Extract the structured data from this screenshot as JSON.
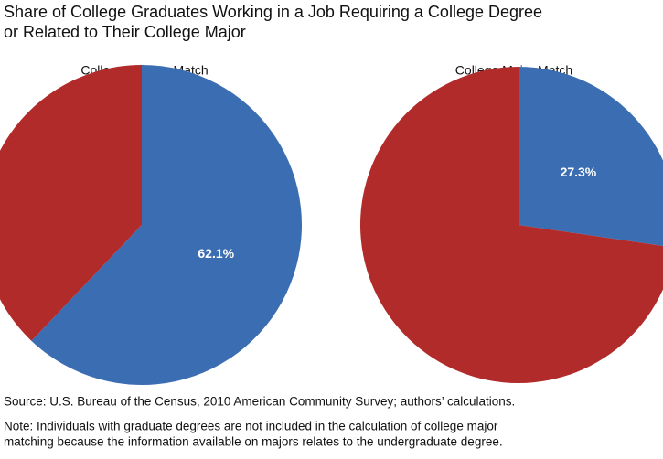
{
  "title": [
    "Share of College Graduates Working in a Job Requiring a College Degree",
    "or Related to Their College Major"
  ],
  "chart_data": [
    {
      "type": "pie",
      "title": "College Degree Match",
      "values": [
        62.1,
        37.9
      ],
      "value_labels": [
        "62.1%",
        null
      ],
      "colors": [
        "#3b6db3",
        "#b12b2a"
      ]
    },
    {
      "type": "pie",
      "title": "College Major Match",
      "values": [
        27.3,
        72.7
      ],
      "value_labels": [
        "27.3%",
        null
      ],
      "colors": [
        "#3b6db3",
        "#b12b2a"
      ]
    }
  ],
  "source": "Source: U.S. Bureau of the Census, 2010 American Community Survey; authors’ calculations.",
  "note": [
    "Note: Individuals with graduate degrees are not included in the calculation of college major",
    "matching because the information available on majors relates to the undergraduate degree."
  ]
}
